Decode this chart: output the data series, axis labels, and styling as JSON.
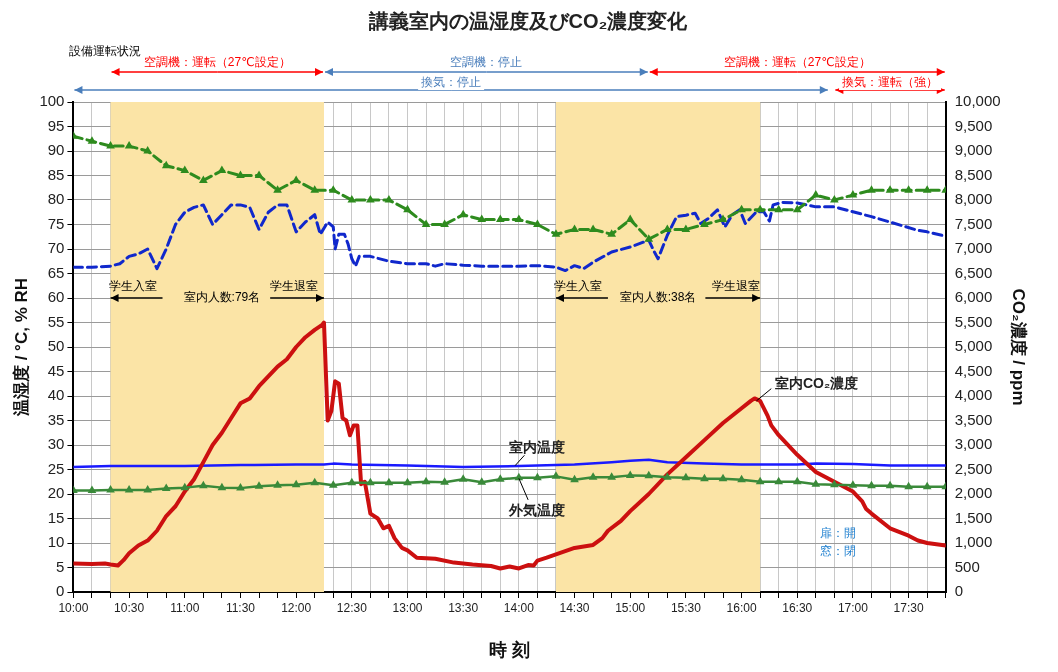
{
  "chart_data": {
    "type": "line",
    "title": "講義室内の温湿度及びCO₂濃度変化",
    "xlabel": "時 刻",
    "ylabel": "温湿度 / °C, % RH",
    "y2label": "CO₂濃度 / ppm",
    "x": [
      10,
      10.1667,
      10.3333,
      10.5,
      10.6667,
      10.8333,
      11,
      11.1667,
      11.3333,
      11.5,
      11.6667,
      11.8333,
      12,
      12.1667,
      12.3333,
      12.5,
      12.6667,
      12.8333,
      13,
      13.1667,
      13.3333,
      13.5,
      13.6667,
      13.8333,
      14,
      14.1667,
      14.3333,
      14.5,
      14.6667,
      14.8333,
      15,
      15.1667,
      15.3333,
      15.5,
      15.6667,
      15.8333,
      16,
      16.1667,
      16.3333,
      16.5,
      16.6667,
      16.8333,
      17,
      17.1667,
      17.3333,
      17.5,
      17.6667,
      17.8333
    ],
    "series": [
      {
        "name": "室内CO₂濃度",
        "color": "#cc1010",
        "axis": "y2",
        "marker": "none",
        "line_style": "solid",
        "x": [
          10,
          10.1667,
          10.2833,
          10.3333,
          10.4,
          10.45,
          10.5,
          10.5833,
          10.6667,
          10.75,
          10.8333,
          10.9167,
          11,
          11.0833,
          11.1667,
          11.25,
          11.3333,
          11.4167,
          11.5,
          11.5833,
          11.6667,
          11.75,
          11.8333,
          11.9167,
          12,
          12.0833,
          12.1667,
          12.2333,
          12.25,
          12.2833,
          12.3167,
          12.35,
          12.3833,
          12.4167,
          12.45,
          12.4833,
          12.5167,
          12.55,
          12.5833,
          12.6167,
          12.6667,
          12.7333,
          12.7833,
          12.8333,
          12.8833,
          12.95,
          13,
          13.0833,
          13.25,
          13.4167,
          13.5833,
          13.75,
          13.8333,
          13.9167,
          14,
          14.0833,
          14.1333,
          14.1667,
          14.25,
          14.3333,
          14.5,
          14.6667,
          14.75,
          14.8,
          14.9167,
          15,
          15.1667,
          15.3333,
          15.5,
          15.6667,
          15.8333,
          16,
          16.0833,
          16.1167,
          16.1667,
          16.2333,
          16.2667,
          16.3333,
          16.5,
          16.6667,
          16.8333,
          17,
          17.0833,
          17.1167,
          17.1667,
          17.3333,
          17.5,
          17.5833,
          17.6667,
          17.8333
        ],
        "values": [
          580,
          570,
          580,
          560,
          540,
          650,
          790,
          950,
          1050,
          1250,
          1550,
          1750,
          2050,
          2300,
          2650,
          3000,
          3250,
          3550,
          3850,
          3950,
          4200,
          4400,
          4600,
          4750,
          5000,
          5200,
          5350,
          5450,
          5500,
          3500,
          3700,
          4300,
          4250,
          3550,
          3500,
          3200,
          3400,
          3400,
          2200,
          2250,
          1600,
          1500,
          1300,
          1350,
          1100,
          900,
          850,
          700,
          680,
          600,
          560,
          530,
          480,
          520,
          480,
          550,
          540,
          640,
          700,
          770,
          900,
          960,
          1100,
          1250,
          1450,
          1650,
          2000,
          2400,
          2750,
          3100,
          3450,
          3750,
          3900,
          3950,
          3900,
          3600,
          3400,
          3200,
          2800,
          2450,
          2250,
          2050,
          1850,
          1700,
          1600,
          1300,
          1150,
          1050,
          1000,
          950
        ]
      },
      {
        "name": "室内温度",
        "color": "#1a1aff",
        "marker": "none",
        "line_style": "solid",
        "x": [
          10,
          10.3333,
          11,
          11.5,
          12,
          12.25,
          12.3333,
          12.5,
          13,
          13.5,
          14,
          14.5,
          14.8333,
          15,
          15.1667,
          15.3333,
          15.6667,
          16,
          16.5,
          16.6667,
          17,
          17.3333,
          17.8333
        ],
        "values": [
          25.5,
          25.7,
          25.7,
          25.9,
          26,
          26,
          26.2,
          26,
          25.8,
          25.5,
          25.7,
          26,
          26.5,
          26.8,
          27,
          26.5,
          26.2,
          26,
          26,
          26.2,
          26.1,
          25.8,
          25.8
        ]
      },
      {
        "name": "外気温度",
        "color": "#3a8a3a",
        "marker": "triangle",
        "line_style": "solid",
        "values": [
          20.7,
          20.7,
          20.8,
          20.8,
          20.8,
          21.1,
          21.3,
          21.7,
          21.3,
          21.2,
          21.6,
          21.8,
          21.9,
          22.3,
          21.8,
          22.3,
          22.3,
          22.3,
          22.3,
          22.5,
          22.4,
          23,
          22.4,
          23,
          23.3,
          23.3,
          23.6,
          22.9,
          23.4,
          23.4,
          23.8,
          23.7,
          23.4,
          23.3,
          23.1,
          23.1,
          22.9,
          22.5,
          22.5,
          22.5,
          22,
          21.9,
          21.8,
          21.7,
          21.7,
          21.5,
          21.5,
          21.5
        ]
      },
      {
        "color": "#1028cc",
        "marker": "none",
        "line_style": "dashed",
        "x": [
          10,
          10.1667,
          10.3333,
          10.4167,
          10.5,
          10.5833,
          10.6667,
          10.75,
          10.8333,
          10.9167,
          11,
          11.0833,
          11.1667,
          11.25,
          11.3333,
          11.4167,
          11.5,
          11.5833,
          11.6667,
          11.75,
          11.8333,
          11.9167,
          12,
          12.0833,
          12.1667,
          12.2167,
          12.2833,
          12.3333,
          12.35,
          12.3833,
          12.4333,
          12.4667,
          12.5,
          12.5333,
          12.5667,
          12.6667,
          12.8333,
          13,
          13.1667,
          13.25,
          13.3333,
          13.5,
          13.6667,
          13.8333,
          14,
          14.1667,
          14.3333,
          14.4167,
          14.5,
          14.5833,
          14.6667,
          14.8333,
          15,
          15.1667,
          15.2167,
          15.25,
          15.3333,
          15.4167,
          15.5,
          15.5833,
          15.6333,
          15.7,
          15.7833,
          15.85,
          15.9167,
          15.9833,
          16.0333,
          16.1333,
          16.2,
          16.25,
          16.2833,
          16.3667,
          16.5,
          16.6667,
          16.8333,
          17,
          17.1667,
          17.3333,
          17.5833,
          17.6667,
          17.8333
        ],
        "values": [
          66.3,
          66.3,
          66.5,
          67,
          68.5,
          69,
          70,
          66,
          70,
          75,
          77.5,
          78.5,
          79,
          75,
          77,
          79,
          79,
          78.5,
          74,
          77.5,
          79,
          79,
          73.5,
          75.5,
          77,
          73,
          75.5,
          74.5,
          70,
          73,
          73,
          71,
          68,
          66.5,
          68.5,
          68.5,
          67.5,
          67,
          67,
          66.5,
          67,
          66.7,
          66.5,
          66.5,
          66.5,
          66.6,
          66.3,
          65.6,
          66.6,
          66,
          67.3,
          69.4,
          70.4,
          71.8,
          69.4,
          68,
          72.8,
          76.6,
          76.9,
          77.3,
          75.2,
          76.2,
          78,
          74.5,
          77,
          78,
          75.2,
          77.6,
          77.6,
          75.7,
          79,
          79.5,
          79.4,
          78.6,
          78.6,
          77.6,
          76.6,
          75.5,
          73.8,
          73.5,
          72.6
        ]
      },
      {
        "color": "#2e8b1e",
        "marker": "triangle",
        "line_style": "dashed",
        "values": [
          93,
          92,
          91,
          91,
          90,
          87,
          86,
          84,
          86,
          85,
          85,
          82,
          84,
          82,
          82,
          80,
          80,
          80,
          78,
          75,
          75,
          77,
          76,
          76,
          76,
          75,
          73,
          74,
          74,
          73,
          76,
          72,
          74,
          74,
          75,
          76,
          78,
          78,
          78,
          78,
          81,
          80,
          81,
          82,
          82,
          82,
          82,
          82
        ]
      }
    ],
    "bands": [
      {
        "axis": "x",
        "from": 10.3333,
        "to": 12.25,
        "color": "#fbe4a6"
      },
      {
        "axis": "x",
        "from": 14.3333,
        "to": 16.1667,
        "color": "#fbe4a6"
      }
    ],
    "annotations": [
      "設備運転状況",
      "空調機：運転（27℃設定）",
      "空調機：停止",
      "空調機：運転（27℃設定）",
      "換気：停止",
      "換気：運転（強）",
      {
        "text": "学生入室",
        "x": 10.3333,
        "y": 60
      },
      "室内人数:79名",
      {
        "text": "学生退室",
        "x": 12.25,
        "y": 60
      },
      {
        "text": "学生入室",
        "x": 14.3333,
        "y": 60
      },
      "室内人数:38名",
      {
        "text": "学生退室",
        "x": 16.1667,
        "y": 60
      },
      "扉：開",
      "窓：閉"
    ],
    "xlim": [
      10,
      17.8333
    ],
    "xticks": [
      {
        "value": 10,
        "label": "10:00"
      },
      {
        "value": 10.1667,
        "label": null
      },
      {
        "value": 10.3333,
        "label": null
      },
      {
        "value": 10.5,
        "label": "10:30"
      },
      {
        "value": 10.6667,
        "label": null
      },
      {
        "value": 10.8333,
        "label": null
      },
      {
        "value": 11,
        "label": "11:00"
      },
      {
        "value": 11.1667,
        "label": null
      },
      {
        "value": 11.3333,
        "label": null
      },
      {
        "value": 11.5,
        "label": "11:30"
      },
      {
        "value": 11.6667,
        "label": null
      },
      {
        "value": 11.8333,
        "label": null
      },
      {
        "value": 12,
        "label": "12:00"
      },
      {
        "value": 12.1667,
        "label": null
      },
      {
        "value": 12.3333,
        "label": null
      },
      {
        "value": 12.5,
        "label": "12:30"
      },
      {
        "value": 12.6667,
        "label": null
      },
      {
        "value": 12.8333,
        "label": null
      },
      {
        "value": 13,
        "label": "13:00"
      },
      {
        "value": 13.1667,
        "label": null
      },
      {
        "value": 13.3333,
        "label": null
      },
      {
        "value": 13.5,
        "label": "13:30"
      },
      {
        "value": 13.6667,
        "label": null
      },
      {
        "value": 13.8333,
        "label": null
      },
      {
        "value": 14,
        "label": "14:00"
      },
      {
        "value": 14.1667,
        "label": null
      },
      {
        "value": 14.3333,
        "label": null
      },
      {
        "value": 14.5,
        "label": "14:30"
      },
      {
        "value": 14.6667,
        "label": null
      },
      {
        "value": 14.8333,
        "label": null
      },
      {
        "value": 15,
        "label": "15:00"
      },
      {
        "value": 15.1667,
        "label": null
      },
      {
        "value": 15.3333,
        "label": null
      },
      {
        "value": 15.5,
        "label": "15:30"
      },
      {
        "value": 15.6667,
        "label": null
      },
      {
        "value": 15.8333,
        "label": null
      },
      {
        "value": 16,
        "label": "16:00"
      },
      {
        "value": 16.1667,
        "label": null
      },
      {
        "value": 16.3333,
        "label": null
      },
      {
        "value": 16.5,
        "label": "16:30"
      },
      {
        "value": 16.6667,
        "label": null
      },
      {
        "value": 16.8333,
        "label": null
      },
      {
        "value": 17,
        "label": "17:00"
      },
      {
        "value": 17.1667,
        "label": null
      },
      {
        "value": 17.3333,
        "label": null
      },
      {
        "value": 17.5,
        "label": "17:30"
      },
      {
        "value": 17.6667,
        "label": null
      },
      {
        "value": 17.8333,
        "label": null
      }
    ],
    "ylim": [
      0,
      100
    ],
    "yticks": [
      0,
      5,
      10,
      15,
      20,
      25,
      30,
      35,
      40,
      45,
      50,
      55,
      60,
      65,
      70,
      75,
      80,
      85,
      90,
      95,
      100
    ],
    "y2lim": [
      0,
      10000
    ],
    "y2ticks": [
      0,
      500,
      {
        "value": 1000,
        "label": "1,000"
      },
      {
        "value": 1500,
        "label": "1,500"
      },
      {
        "value": 2000,
        "label": "2,000"
      },
      {
        "value": 2500,
        "label": "2,500"
      },
      {
        "value": 3000,
        "label": "3,000"
      },
      {
        "value": 3500,
        "label": "3,500"
      },
      {
        "value": 4000,
        "label": "4,000"
      },
      {
        "value": 4500,
        "label": "4,500"
      },
      {
        "value": 5000,
        "label": "5,000"
      },
      {
        "value": 5500,
        "label": "5,500"
      },
      {
        "value": 6000,
        "label": "6,000"
      },
      {
        "value": 6500,
        "label": "6,500"
      },
      {
        "value": 7000,
        "label": "7,000"
      },
      {
        "value": 7500,
        "label": "7,500"
      },
      {
        "value": 8000,
        "label": "8,000"
      },
      {
        "value": 8500,
        "label": "8,500"
      },
      {
        "value": 9000,
        "label": "9,000"
      },
      {
        "value": 9500,
        "label": "9,500"
      },
      {
        "value": 10000,
        "label": "10,000"
      }
    ],
    "grid": true,
    "legend": false
  }
}
